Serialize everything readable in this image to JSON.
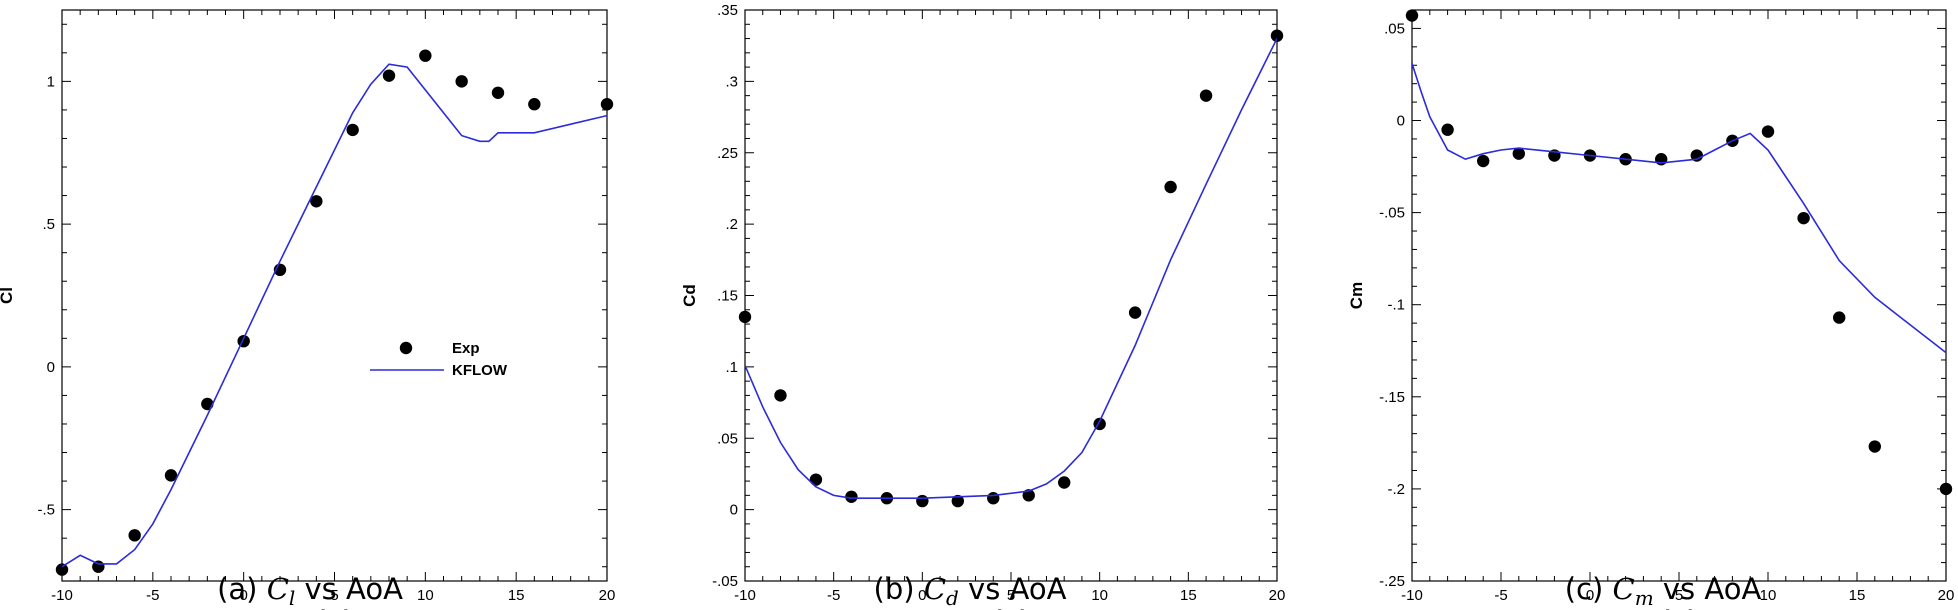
{
  "chart_data": [
    {
      "type": "scatter+line",
      "xlabel": "AoA",
      "ylabel": "Cl",
      "xlim": [
        -10,
        20
      ],
      "ylim": [
        -0.75,
        1.25
      ],
      "xticks": [
        -10,
        -5,
        0,
        5,
        10,
        15,
        20
      ],
      "yticks": [
        -0.5,
        0,
        0.5,
        1
      ],
      "caption": {
        "prefix": "(a) ",
        "symbol": "C",
        "subscript": "l",
        "suffix": " vs AoA"
      },
      "legend": {
        "show": true,
        "placement": "center-right"
      },
      "series": [
        {
          "name": "Exp",
          "kind": "scatter",
          "x": [
            -10,
            -8,
            -6,
            -4,
            -2,
            0,
            2,
            4,
            6,
            8,
            10,
            12,
            14,
            16,
            20
          ],
          "y": [
            -0.71,
            -0.7,
            -0.59,
            -0.38,
            -0.13,
            0.09,
            0.34,
            0.58,
            0.83,
            1.02,
            1.09,
            1.0,
            0.96,
            0.92,
            0.92
          ]
        },
        {
          "name": "KFLOW",
          "kind": "line",
          "color": "#2b2bdb",
          "x": [
            -10,
            -9,
            -8,
            -7,
            -6,
            -5,
            -4,
            -2,
            0,
            2,
            4,
            6,
            7,
            8,
            9,
            10,
            11,
            12,
            13,
            13.5,
            14,
            16,
            18,
            20
          ],
          "y": [
            -0.7,
            -0.66,
            -0.69,
            -0.69,
            -0.64,
            -0.55,
            -0.43,
            -0.17,
            0.1,
            0.37,
            0.63,
            0.89,
            0.99,
            1.06,
            1.05,
            0.97,
            0.89,
            0.81,
            0.79,
            0.79,
            0.82,
            0.82,
            0.85,
            0.88
          ]
        }
      ]
    },
    {
      "type": "scatter+line",
      "xlabel": "AoA",
      "ylabel": "Cd",
      "xlim": [
        -10,
        20
      ],
      "ylim": [
        -0.05,
        0.35
      ],
      "xticks": [
        -10,
        -5,
        0,
        5,
        10,
        15,
        20
      ],
      "yticks": [
        -0.05,
        0,
        0.05,
        0.1,
        0.15,
        0.2,
        0.25,
        0.3,
        0.35
      ],
      "caption": {
        "prefix": "(b) ",
        "symbol": "C",
        "subscript": "d",
        "suffix": " vs AoA"
      },
      "legend": {
        "show": false
      },
      "series": [
        {
          "name": "Exp",
          "kind": "scatter",
          "x": [
            -10,
            -8,
            -6,
            -4,
            -2,
            0,
            2,
            4,
            6,
            8,
            10,
            12,
            14,
            16,
            20
          ],
          "y": [
            0.135,
            0.08,
            0.021,
            0.009,
            0.008,
            0.006,
            0.006,
            0.008,
            0.01,
            0.019,
            0.06,
            0.138,
            0.226,
            0.29,
            0.332
          ]
        },
        {
          "name": "KFLOW",
          "kind": "line",
          "color": "#2b2bdb",
          "x": [
            -10,
            -9,
            -8,
            -7,
            -6,
            -5,
            -4,
            -2,
            0,
            2,
            4,
            6,
            7,
            8,
            9,
            10,
            12,
            14,
            16,
            18,
            20
          ],
          "y": [
            0.101,
            0.072,
            0.047,
            0.028,
            0.016,
            0.01,
            0.008,
            0.008,
            0.008,
            0.009,
            0.01,
            0.013,
            0.018,
            0.027,
            0.04,
            0.062,
            0.115,
            0.175,
            0.228,
            0.28,
            0.33
          ]
        }
      ]
    },
    {
      "type": "scatter+line",
      "xlabel": "AoA",
      "ylabel": "Cm",
      "xlim": [
        -10,
        20
      ],
      "ylim": [
        -0.25,
        0.06
      ],
      "xticks": [
        -10,
        -5,
        0,
        5,
        10,
        15,
        20
      ],
      "yticks": [
        -0.25,
        -0.2,
        -0.15,
        -0.1,
        -0.05,
        0,
        0.05
      ],
      "caption": {
        "prefix": "(c) ",
        "symbol": "C",
        "subscript": "m",
        "suffix": " vs AoA"
      },
      "legend": {
        "show": false
      },
      "series": [
        {
          "name": "Exp",
          "kind": "scatter",
          "x": [
            -10,
            -8,
            -6,
            -4,
            -2,
            0,
            2,
            4,
            6,
            8,
            10,
            12,
            14,
            16,
            20
          ],
          "y": [
            0.057,
            -0.005,
            -0.022,
            -0.018,
            -0.019,
            -0.019,
            -0.021,
            -0.021,
            -0.019,
            -0.011,
            -0.006,
            -0.053,
            -0.107,
            -0.177,
            -0.2
          ]
        },
        {
          "name": "KFLOW",
          "kind": "line",
          "color": "#2b2bdb",
          "x": [
            -10,
            -9.5,
            -9,
            -8,
            -7,
            -6,
            -5,
            -4,
            -2,
            0,
            2,
            4,
            6,
            7,
            8,
            9,
            10,
            12,
            14,
            16,
            18,
            20
          ],
          "y": [
            0.031,
            0.016,
            0.002,
            -0.016,
            -0.021,
            -0.018,
            -0.016,
            -0.015,
            -0.017,
            -0.019,
            -0.021,
            -0.023,
            -0.021,
            -0.016,
            -0.011,
            -0.007,
            -0.016,
            -0.045,
            -0.076,
            -0.096,
            -0.111,
            -0.126
          ]
        }
      ]
    }
  ]
}
